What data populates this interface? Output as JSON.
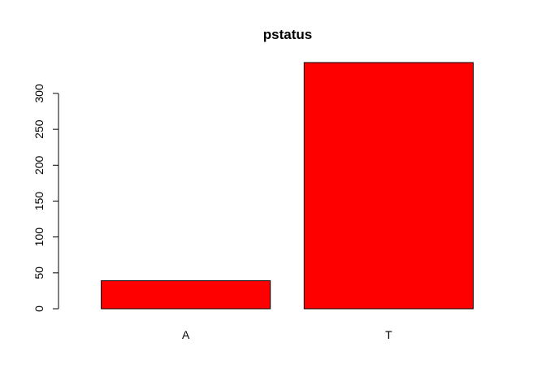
{
  "chart_data": {
    "type": "bar",
    "title": "pstatus",
    "xlabel": "",
    "ylabel": "",
    "categories": [
      "A",
      "T"
    ],
    "values": [
      39,
      343
    ],
    "ylim": [
      0,
      343
    ],
    "yticks": [
      0,
      50,
      100,
      150,
      200,
      250,
      300
    ],
    "bar_color": "#ff0000",
    "grid": false,
    "legend": "none"
  }
}
